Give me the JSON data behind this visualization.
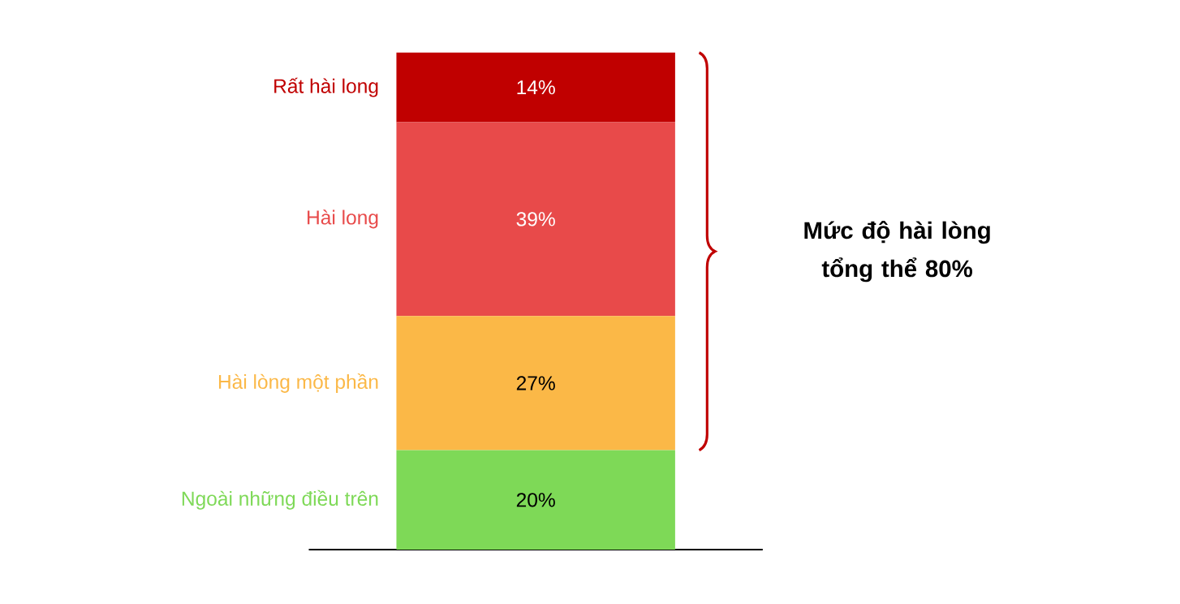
{
  "chart_data": {
    "type": "bar",
    "stacked": true,
    "categories": [
      null
    ],
    "series": [
      {
        "name": "Ngoài những điều trên",
        "color": "#7ed957",
        "values": [
          20
        ],
        "value_labels": [
          "20%"
        ]
      },
      {
        "name": "Hài lòng một phần",
        "color": "#fbb847",
        "values": [
          27
        ],
        "value_labels": [
          "27%"
        ]
      },
      {
        "name": "Hài long",
        "color": "#e84a4a",
        "values": [
          39
        ],
        "value_labels": [
          "39%"
        ]
      },
      {
        "name": "Rất hài long",
        "color": "#c00000",
        "values": [
          14
        ],
        "value_labels": [
          "14%"
        ]
      }
    ],
    "annotations": [
      "Mức độ hài lòng tổng thể 80%"
    ]
  }
}
